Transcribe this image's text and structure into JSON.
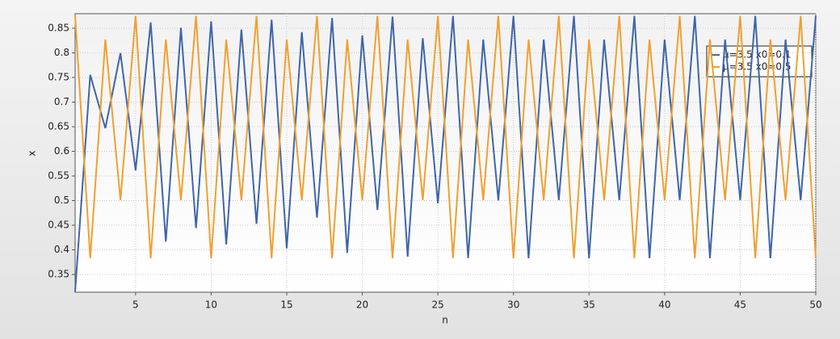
{
  "chart_data": {
    "type": "line",
    "x_label": "n",
    "y_label": "x",
    "x": [
      1,
      2,
      3,
      4,
      5,
      6,
      7,
      8,
      9,
      10,
      11,
      12,
      13,
      14,
      15,
      16,
      17,
      18,
      19,
      20,
      21,
      22,
      23,
      24,
      25,
      26,
      27,
      28,
      29,
      30,
      31,
      32,
      33,
      34,
      35,
      36,
      37,
      38,
      39,
      40,
      41,
      42,
      43,
      44,
      45,
      46,
      47,
      48,
      49,
      50
    ],
    "series": [
      {
        "name": "μ=3.5 x0=0.1",
        "color": "#3f65a8",
        "values": [
          0.315,
          0.7552,
          0.647,
          0.7994,
          0.5613,
          0.8618,
          0.4168,
          0.8508,
          0.4443,
          0.8641,
          0.411,
          0.8473,
          0.4528,
          0.8672,
          0.4031,
          0.8421,
          0.4654,
          0.8708,
          0.3938,
          0.8355,
          0.481,
          0.8737,
          0.3862,
          0.8297,
          0.4945,
          0.8749,
          0.3831,
          0.8272,
          0.5003,
          0.875,
          0.383,
          0.827,
          0.501,
          0.875,
          0.383,
          0.827,
          0.501,
          0.875,
          0.383,
          0.827,
          0.501,
          0.875,
          0.383,
          0.827,
          0.501,
          0.875,
          0.383,
          0.827,
          0.501,
          0.875
        ]
      },
      {
        "name": "μ=3.5 x0=0.5",
        "color": "#f0a030",
        "values": [
          0.875,
          0.383,
          0.827,
          0.501,
          0.875,
          0.383,
          0.827,
          0.501,
          0.875,
          0.383,
          0.827,
          0.501,
          0.875,
          0.383,
          0.827,
          0.501,
          0.875,
          0.383,
          0.827,
          0.501,
          0.875,
          0.383,
          0.827,
          0.501,
          0.875,
          0.383,
          0.827,
          0.501,
          0.875,
          0.383,
          0.827,
          0.501,
          0.875,
          0.383,
          0.827,
          0.501,
          0.875,
          0.383,
          0.827,
          0.501,
          0.875,
          0.383,
          0.827,
          0.501,
          0.875,
          0.383,
          0.827,
          0.501,
          0.875,
          0.383
        ]
      }
    ],
    "xlim": [
      1,
      50
    ],
    "xticks": [
      5,
      10,
      15,
      20,
      25,
      30,
      35,
      40,
      45,
      50
    ],
    "ylim": [
      0.314,
      0.8795
    ],
    "yticks": [
      0.35,
      0.4,
      0.45,
      0.5,
      0.55,
      0.6,
      0.65,
      0.7,
      0.75,
      0.8,
      0.85
    ],
    "grid": true,
    "legend": "upper right"
  }
}
